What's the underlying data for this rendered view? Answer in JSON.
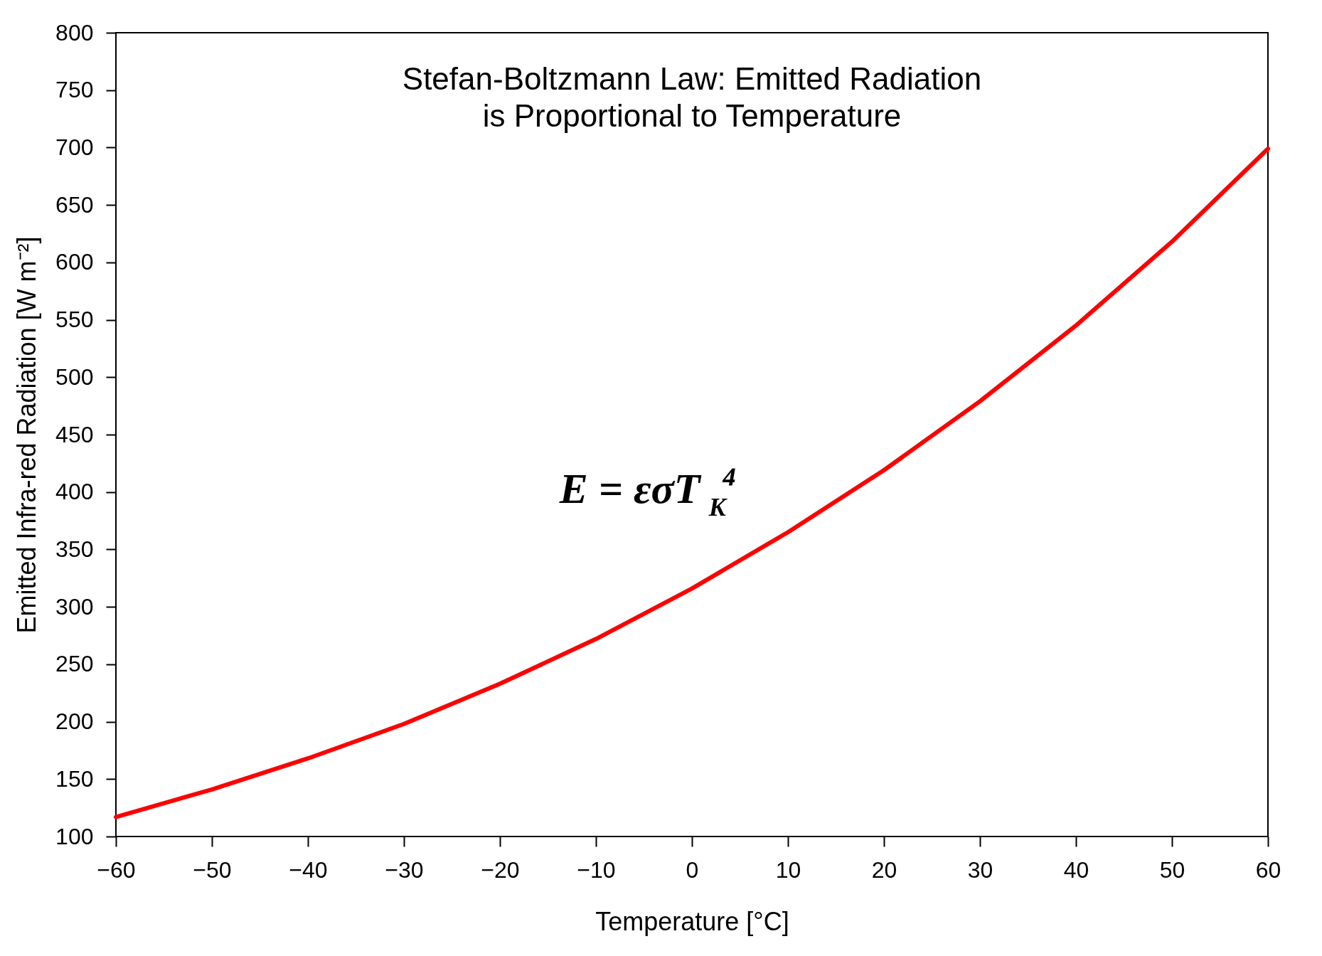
{
  "chart_data": {
    "type": "line",
    "title": "Stefan-Boltzmann Law: Emitted Radiation\nis Proportional to Temperature",
    "xlabel": "Temperature [°C]",
    "ylabel": "Emitted Infra-red Radiation [W m⁻²]",
    "annotations": [
      "E = εσT$_{K}$⁴"
    ],
    "x": [
      -60,
      -50,
      -40,
      -30,
      -20,
      -10,
      0,
      10,
      20,
      30,
      40,
      50,
      60
    ],
    "series": [
      {
        "color": "#ff0000",
        "values": [
          117,
          141,
          168,
          198,
          233,
          272,
          316,
          365,
          419,
          479,
          545,
          618,
          699
        ]
      }
    ],
    "xlim": [
      -60,
      60
    ],
    "xticks": [
      -60,
      -50,
      -40,
      -30,
      -20,
      -10,
      0,
      10,
      20,
      30,
      40,
      50,
      60
    ],
    "ylim": [
      100,
      800
    ],
    "yticks": [
      100,
      150,
      200,
      250,
      300,
      350,
      400,
      450,
      500,
      550,
      600,
      650,
      700,
      750,
      800
    ],
    "grid": false,
    "marker": "none",
    "line_style": "solid"
  }
}
